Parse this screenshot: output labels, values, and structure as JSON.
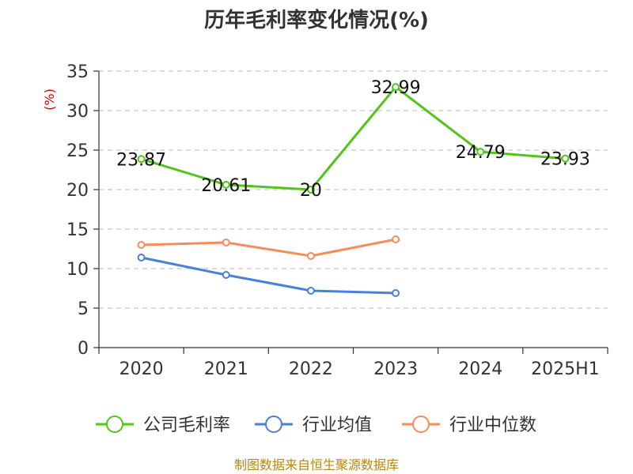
{
  "chart_data": {
    "type": "line",
    "title": "历年毛利率变化情况(%)",
    "ylabel": "(%)",
    "xlabel": "",
    "categories": [
      "2020",
      "2021",
      "2022",
      "2023",
      "2024",
      "2025H1"
    ],
    "ylim": [
      0,
      35
    ],
    "yticks": [
      0,
      5,
      10,
      15,
      20,
      25,
      30,
      35
    ],
    "grid": "horizontal-dashed",
    "legend_position": "bottom",
    "series": [
      {
        "name": "公司毛利率",
        "color": "#52c41a",
        "values": [
          23.87,
          20.61,
          20,
          32.99,
          24.79,
          23.93
        ],
        "labels": [
          "23.87",
          "20.61",
          "20",
          "32.99",
          "24.79",
          "23.93"
        ]
      },
      {
        "name": "行业均值",
        "color": "#4a7fdc",
        "values": [
          11.4,
          9.2,
          7.2,
          6.9,
          null,
          null
        ],
        "labels": []
      },
      {
        "name": "行业中位数",
        "color": "#f58d5a",
        "values": [
          13.0,
          13.3,
          11.6,
          13.7,
          null,
          null
        ],
        "labels": []
      }
    ]
  },
  "source": "制图数据来自恒生聚源数据库"
}
